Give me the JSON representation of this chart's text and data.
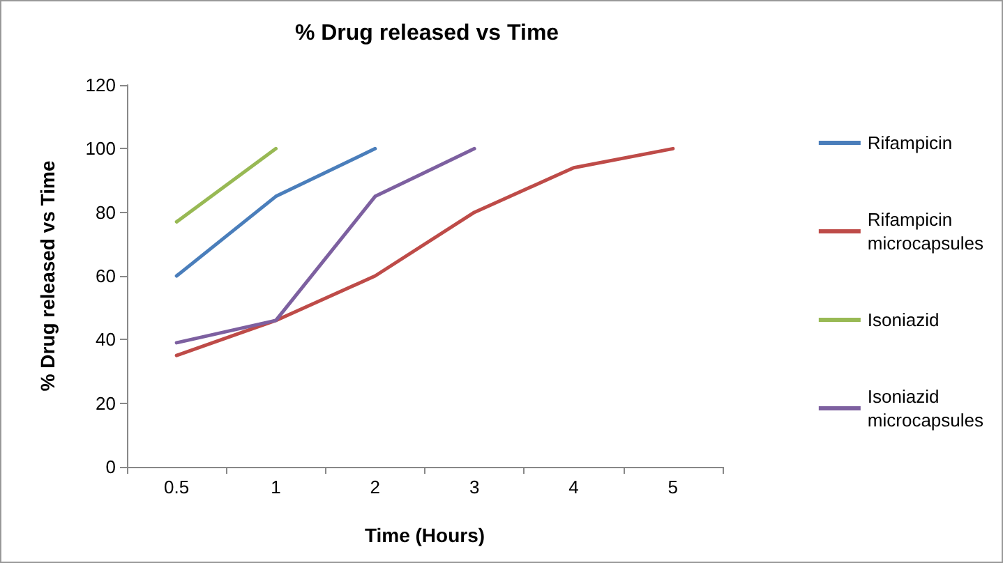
{
  "chart_data": {
    "type": "line",
    "title": "% Drug released vs Time",
    "xlabel": "Time (Hours)",
    "ylabel": "% Drug released vs Time",
    "categories": [
      "0.5",
      "1",
      "2",
      "3",
      "4",
      "5"
    ],
    "series": [
      {
        "name": "Rifampicin",
        "color": "#4a7ebb",
        "values": [
          60,
          85,
          100,
          null,
          null,
          null
        ]
      },
      {
        "name": "Rifampicin microcapsules",
        "color": "#be4b48",
        "values": [
          35,
          46,
          60,
          80,
          94,
          100
        ]
      },
      {
        "name": "Isoniazid",
        "color": "#98b954",
        "values": [
          77,
          100,
          null,
          null,
          null,
          null
        ]
      },
      {
        "name": "Isoniazid microcapsules",
        "color": "#7d60a0",
        "values": [
          39,
          46,
          85,
          100,
          null,
          null
        ]
      }
    ],
    "ylim": [
      0,
      120
    ],
    "yticks": [
      0,
      20,
      40,
      60,
      80,
      100,
      120
    ],
    "grid": false,
    "legend": "right",
    "marker": "none",
    "line_style": "solid"
  }
}
